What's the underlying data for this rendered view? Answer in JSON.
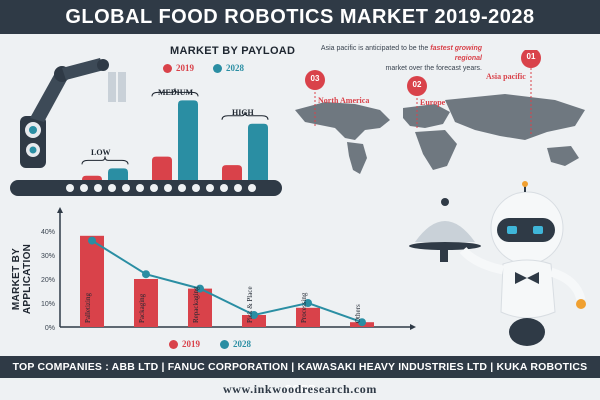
{
  "header": {
    "title": "GLOBAL FOOD ROBOTICS MARKET 2019-2028"
  },
  "colors": {
    "series_2019": "#d9424a",
    "series_2028": "#2a8ea3",
    "dark": "#2f3a46",
    "map": "#6f7880"
  },
  "payload_chart": {
    "title": "MARKET BY PAYLOAD",
    "legend": [
      "2019",
      "2028"
    ],
    "labels": [
      "LOW",
      "MEDIUM",
      "HIGH"
    ]
  },
  "regions": {
    "note_part1": "Asia pacific is anticipated to be the ",
    "note_highlight": "fastest growing regional",
    "note_part2": "market over the forecast years.",
    "items": [
      {
        "rank": "03",
        "name": "North America"
      },
      {
        "rank": "02",
        "name": "Europe"
      },
      {
        "rank": "01",
        "name": "Asia pacific"
      }
    ]
  },
  "chart_data": [
    {
      "type": "bar",
      "title": "MARKET BY PAYLOAD",
      "categories": [
        "LOW",
        "MEDIUM",
        "HIGH"
      ],
      "series": [
        {
          "name": "2019",
          "values": [
            4,
            22,
            14
          ]
        },
        {
          "name": "2028",
          "values": [
            11,
            75,
            53
          ]
        }
      ],
      "ylim": [
        0,
        80
      ],
      "note": "no axis values shown; relative heights estimated"
    },
    {
      "type": "bar",
      "title": "MARKET BY APPLICATION",
      "categories": [
        "Palletizing",
        "Packaging",
        "Repackaging",
        "Pick & Place",
        "Processing",
        "Others"
      ],
      "series": [
        {
          "name": "2019",
          "values": [
            38,
            20,
            16,
            5,
            8,
            2
          ]
        },
        {
          "name": "2028",
          "values": [
            36,
            22,
            16,
            5,
            10,
            2
          ]
        }
      ],
      "series_types": [
        "bar",
        "line"
      ],
      "yticks": [
        "0%",
        "10%",
        "20%",
        "30%",
        "40%"
      ],
      "ylim": [
        0,
        45
      ],
      "ylabel": "MARKET BY APPLICATION",
      "legend": [
        "2019",
        "2028"
      ]
    }
  ],
  "footer": {
    "companies": "TOP COMPANIES : ABB LTD | FANUC CORPORATION | KAWASAKI HEAVY INDUSTRIES LTD | KUKA ROBOTICS CORP",
    "website": "www.inkwoodresearch.com"
  }
}
